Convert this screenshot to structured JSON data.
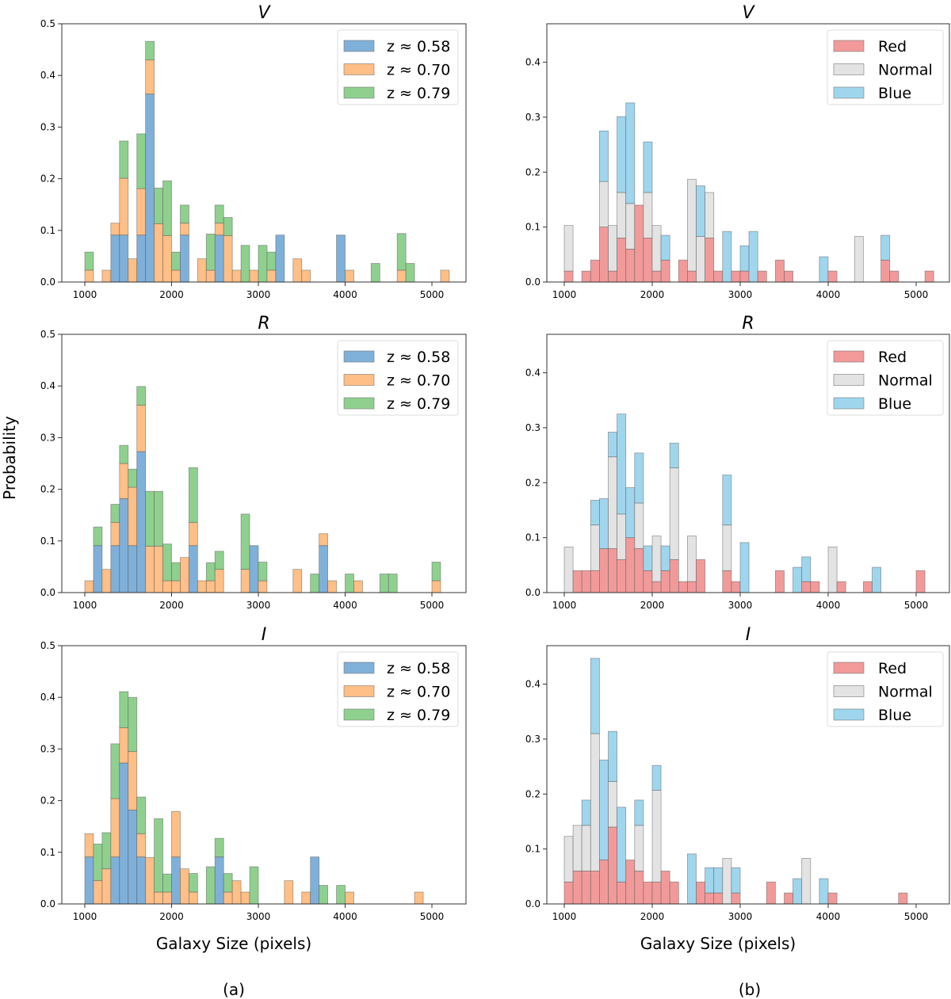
{
  "figure": {
    "ylabel": "Probability",
    "xlabel": "Galaxy Size (pixels)",
    "subcaptions": [
      "(a)",
      "(b)"
    ]
  },
  "chart_data": [
    {
      "type": "bar",
      "stacked": true,
      "panel": "a",
      "title": "V",
      "xlabel": "",
      "ylabel": "Probability",
      "xlim": [
        800,
        5400
      ],
      "ylim": [
        0,
        0.5
      ],
      "xticks": [
        "1000",
        "2000",
        "3000",
        "4000",
        "5000"
      ],
      "yticks": [
        "0.0",
        "0.1",
        "0.2",
        "0.3",
        "0.4",
        "0.5"
      ],
      "legend_position": "top-right",
      "bin_width": 100,
      "series": [
        {
          "name": "z ≈ 0.58",
          "color": "#7fb0d9"
        },
        {
          "name": "z ≈ 0.70",
          "color": "#ffbf86"
        },
        {
          "name": "z ≈ 0.79",
          "color": "#8fd08f"
        }
      ],
      "bins": [
        [
          1000,
          0,
          0.023,
          0.035
        ],
        [
          1200,
          0,
          0.023,
          0
        ],
        [
          1300,
          0.091,
          0.023,
          0
        ],
        [
          1400,
          0.091,
          0.11,
          0.072
        ],
        [
          1500,
          0,
          0.045,
          0
        ],
        [
          1600,
          0.091,
          0.09,
          0.106
        ],
        [
          1700,
          0.364,
          0.066,
          0.036
        ],
        [
          1800,
          0,
          0.113,
          0.069
        ],
        [
          1900,
          0,
          0.09,
          0.106
        ],
        [
          2000,
          0,
          0.023,
          0.035
        ],
        [
          2100,
          0.091,
          0.023,
          0.035
        ],
        [
          2300,
          0,
          0.045,
          0
        ],
        [
          2400,
          0,
          0.023,
          0.07
        ],
        [
          2500,
          0.091,
          0.023,
          0.035
        ],
        [
          2600,
          0,
          0.09,
          0.035
        ],
        [
          2700,
          0,
          0.023,
          0
        ],
        [
          2800,
          0,
          0,
          0.071
        ],
        [
          2900,
          0,
          0.023,
          0
        ],
        [
          3000,
          0,
          0,
          0.071
        ],
        [
          3100,
          0,
          0.023,
          0.035
        ],
        [
          3200,
          0.091,
          0,
          0
        ],
        [
          3400,
          0,
          0.045,
          0
        ],
        [
          3500,
          0,
          0.023,
          0
        ],
        [
          3900,
          0.091,
          0,
          0
        ],
        [
          4000,
          0,
          0.023,
          0
        ],
        [
          4300,
          0,
          0,
          0.036
        ],
        [
          4600,
          0,
          0.023,
          0.071
        ],
        [
          4700,
          0,
          0,
          0.036
        ],
        [
          5100,
          0,
          0.023,
          0
        ]
      ]
    },
    {
      "type": "bar",
      "stacked": true,
      "panel": "b",
      "title": "V",
      "xlabel": "",
      "ylabel": "",
      "xlim": [
        800,
        5400
      ],
      "ylim": [
        0,
        0.47
      ],
      "xticks": [
        "1000",
        "2000",
        "3000",
        "4000",
        "5000"
      ],
      "yticks": [
        "0.0",
        "0.1",
        "0.2",
        "0.3",
        "0.4"
      ],
      "legend_position": "top-right",
      "bin_width": 100,
      "series": [
        {
          "name": "Red",
          "color": "#f29a9a"
        },
        {
          "name": "Normal",
          "color": "#e3e3e3"
        },
        {
          "name": "Blue",
          "color": "#9fd6ee"
        }
      ],
      "bins": [
        [
          1000,
          0.02,
          0.083,
          0
        ],
        [
          1200,
          0.02,
          0,
          0
        ],
        [
          1300,
          0.04,
          0,
          0
        ],
        [
          1400,
          0.1,
          0.083,
          0.092
        ],
        [
          1500,
          0.02,
          0.083,
          0
        ],
        [
          1600,
          0.08,
          0.083,
          0.138
        ],
        [
          1700,
          0.06,
          0.083,
          0.183
        ],
        [
          1800,
          0.14,
          0,
          0
        ],
        [
          1900,
          0.08,
          0.083,
          0.092
        ],
        [
          2000,
          0.02,
          0.083,
          0
        ],
        [
          2100,
          0.04,
          0,
          0.045
        ],
        [
          2300,
          0.04,
          0,
          0
        ],
        [
          2400,
          0.02,
          0.167,
          0
        ],
        [
          2500,
          0,
          0.083,
          0.092
        ],
        [
          2600,
          0.08,
          0.083,
          0
        ],
        [
          2700,
          0.02,
          0,
          0
        ],
        [
          2800,
          0,
          0,
          0.092
        ],
        [
          2900,
          0.02,
          0,
          0
        ],
        [
          3000,
          0.02,
          0,
          0.046
        ],
        [
          3100,
          0,
          0,
          0.092
        ],
        [
          3200,
          0.02,
          0,
          0
        ],
        [
          3400,
          0.04,
          0,
          0
        ],
        [
          3500,
          0.02,
          0,
          0
        ],
        [
          3900,
          0,
          0,
          0.046
        ],
        [
          4000,
          0.02,
          0,
          0
        ],
        [
          4300,
          0,
          0.083,
          0
        ],
        [
          4600,
          0.04,
          0,
          0.045
        ],
        [
          4700,
          0.02,
          0,
          0
        ],
        [
          5100,
          0.02,
          0,
          0
        ]
      ]
    },
    {
      "type": "bar",
      "stacked": true,
      "panel": "a",
      "title": "R",
      "xlabel": "",
      "ylabel": "Probability",
      "xlim": [
        800,
        5400
      ],
      "ylim": [
        0,
        0.5
      ],
      "xticks": [
        "1000",
        "2000",
        "3000",
        "4000",
        "5000"
      ],
      "yticks": [
        "0.0",
        "0.1",
        "0.2",
        "0.3",
        "0.4",
        "0.5"
      ],
      "legend_position": "top-right",
      "bin_width": 100,
      "series": [
        {
          "name": "z ≈ 0.58",
          "color": "#7fb0d9"
        },
        {
          "name": "z ≈ 0.70",
          "color": "#ffbf86"
        },
        {
          "name": "z ≈ 0.79",
          "color": "#8fd08f"
        }
      ],
      "bins": [
        [
          1000,
          0,
          0.023,
          0
        ],
        [
          1100,
          0.091,
          0,
          0.036
        ],
        [
          1200,
          0,
          0.045,
          0
        ],
        [
          1300,
          0.091,
          0.045,
          0.035
        ],
        [
          1400,
          0.182,
          0.068,
          0.035
        ],
        [
          1500,
          0.091,
          0.113,
          0.035
        ],
        [
          1600,
          0.273,
          0.09,
          0.036
        ],
        [
          1700,
          0,
          0.09,
          0.106
        ],
        [
          1800,
          0,
          0.09,
          0.106
        ],
        [
          1900,
          0,
          0.023,
          0.071
        ],
        [
          2000,
          0,
          0.023,
          0.035
        ],
        [
          2100,
          0,
          0.068,
          0
        ],
        [
          2200,
          0.091,
          0.045,
          0.106
        ],
        [
          2300,
          0,
          0.023,
          0
        ],
        [
          2400,
          0,
          0.023,
          0.035
        ],
        [
          2500,
          0,
          0.045,
          0.035
        ],
        [
          2800,
          0,
          0.045,
          0.107
        ],
        [
          2900,
          0.091,
          0,
          0
        ],
        [
          3000,
          0,
          0.023,
          0.036
        ],
        [
          3400,
          0,
          0.045,
          0
        ],
        [
          3600,
          0,
          0,
          0.036
        ],
        [
          3700,
          0.091,
          0.023,
          0
        ],
        [
          3800,
          0,
          0.023,
          0
        ],
        [
          4000,
          0,
          0,
          0.036
        ],
        [
          4100,
          0,
          0.023,
          0
        ],
        [
          4400,
          0,
          0,
          0.036
        ],
        [
          4500,
          0,
          0,
          0.036
        ],
        [
          5000,
          0,
          0.023,
          0.036
        ]
      ]
    },
    {
      "type": "bar",
      "stacked": true,
      "panel": "b",
      "title": "R",
      "xlabel": "",
      "ylabel": "",
      "xlim": [
        800,
        5400
      ],
      "ylim": [
        0,
        0.47
      ],
      "xticks": [
        "1000",
        "2000",
        "3000",
        "4000",
        "5000"
      ],
      "yticks": [
        "0.0",
        "0.1",
        "0.2",
        "0.3",
        "0.4"
      ],
      "legend_position": "top-right",
      "bin_width": 100,
      "series": [
        {
          "name": "Red",
          "color": "#f29a9a"
        },
        {
          "name": "Normal",
          "color": "#e3e3e3"
        },
        {
          "name": "Blue",
          "color": "#9fd6ee"
        }
      ],
      "bins": [
        [
          1000,
          0,
          0.083,
          0
        ],
        [
          1100,
          0.04,
          0,
          0
        ],
        [
          1200,
          0.04,
          0,
          0
        ],
        [
          1300,
          0.04,
          0.083,
          0.045
        ],
        [
          1400,
          0.08,
          0,
          0.091
        ],
        [
          1500,
          0.08,
          0.167,
          0.045
        ],
        [
          1600,
          0.06,
          0.083,
          0.182
        ],
        [
          1700,
          0.1,
          0,
          0.091
        ],
        [
          1800,
          0.08,
          0.083,
          0.091
        ],
        [
          1900,
          0.04,
          0,
          0.045
        ],
        [
          2000,
          0.02,
          0.083,
          0
        ],
        [
          2100,
          0.04,
          0,
          0.045
        ],
        [
          2200,
          0.06,
          0.167,
          0.045
        ],
        [
          2300,
          0.02,
          0,
          0
        ],
        [
          2400,
          0.02,
          0.083,
          0
        ],
        [
          2500,
          0.06,
          0,
          0
        ],
        [
          2800,
          0.04,
          0.083,
          0.091
        ],
        [
          2900,
          0.02,
          0,
          0
        ],
        [
          3000,
          0,
          0,
          0.091
        ],
        [
          3400,
          0.04,
          0,
          0
        ],
        [
          3600,
          0,
          0,
          0.046
        ],
        [
          3700,
          0.02,
          0,
          0.045
        ],
        [
          3800,
          0.02,
          0,
          0
        ],
        [
          4000,
          0,
          0.083,
          0
        ],
        [
          4100,
          0.02,
          0,
          0
        ],
        [
          4400,
          0.02,
          0,
          0
        ],
        [
          4500,
          0,
          0,
          0.046
        ],
        [
          5000,
          0.04,
          0,
          0
        ]
      ]
    },
    {
      "type": "bar",
      "stacked": true,
      "panel": "a",
      "title": "I",
      "xlabel": "Galaxy Size (pixels)",
      "ylabel": "Probability",
      "xlim": [
        800,
        5400
      ],
      "ylim": [
        0,
        0.5
      ],
      "xticks": [
        "1000",
        "2000",
        "3000",
        "4000",
        "5000"
      ],
      "yticks": [
        "0.0",
        "0.1",
        "0.2",
        "0.3",
        "0.4",
        "0.5"
      ],
      "legend_position": "top-right",
      "bin_width": 100,
      "series": [
        {
          "name": "z ≈ 0.58",
          "color": "#7fb0d9"
        },
        {
          "name": "z ≈ 0.70",
          "color": "#ffbf86"
        },
        {
          "name": "z ≈ 0.79",
          "color": "#8fd08f"
        }
      ],
      "bins": [
        [
          1000,
          0.091,
          0.045,
          0
        ],
        [
          1100,
          0,
          0.045,
          0.071
        ],
        [
          1200,
          0,
          0.068,
          0.07
        ],
        [
          1300,
          0.091,
          0.113,
          0.106
        ],
        [
          1400,
          0.273,
          0.068,
          0.07
        ],
        [
          1500,
          0.182,
          0.113,
          0.105
        ],
        [
          1600,
          0.091,
          0.045,
          0.071
        ],
        [
          1700,
          0,
          0.09,
          0
        ],
        [
          1800,
          0,
          0.023,
          0.142
        ],
        [
          1900,
          0,
          0.023,
          0.035
        ],
        [
          2000,
          0.091,
          0.088,
          0
        ],
        [
          2100,
          0,
          0.068,
          0
        ],
        [
          2200,
          0,
          0.023,
          0.036
        ],
        [
          2400,
          0,
          0,
          0.072
        ],
        [
          2500,
          0.091,
          0,
          0.036
        ],
        [
          2600,
          0,
          0.023,
          0.036
        ],
        [
          2700,
          0,
          0.045,
          0
        ],
        [
          2800,
          0,
          0.023,
          0
        ],
        [
          2900,
          0,
          0,
          0.072
        ],
        [
          3300,
          0,
          0.045,
          0
        ],
        [
          3500,
          0,
          0.023,
          0
        ],
        [
          3600,
          0.091,
          0,
          0
        ],
        [
          3700,
          0,
          0,
          0.036
        ],
        [
          3900,
          0,
          0,
          0.036
        ],
        [
          4000,
          0,
          0.023,
          0
        ],
        [
          4800,
          0,
          0.023,
          0
        ]
      ]
    },
    {
      "type": "bar",
      "stacked": true,
      "panel": "b",
      "title": "I",
      "xlabel": "Galaxy Size (pixels)",
      "ylabel": "",
      "xlim": [
        800,
        5400
      ],
      "ylim": [
        0,
        0.47
      ],
      "xticks": [
        "1000",
        "2000",
        "3000",
        "4000",
        "5000"
      ],
      "yticks": [
        "0.0",
        "0.1",
        "0.2",
        "0.3",
        "0.4"
      ],
      "legend_position": "top-right",
      "bin_width": 100,
      "series": [
        {
          "name": "Red",
          "color": "#f29a9a"
        },
        {
          "name": "Normal",
          "color": "#e3e3e3"
        },
        {
          "name": "Blue",
          "color": "#9fd6ee"
        }
      ],
      "bins": [
        [
          1000,
          0.04,
          0.083,
          0
        ],
        [
          1100,
          0.06,
          0.083,
          0
        ],
        [
          1200,
          0.06,
          0.083,
          0.046
        ],
        [
          1300,
          0.06,
          0.25,
          0.137
        ],
        [
          1400,
          0.08,
          0,
          0.182
        ],
        [
          1500,
          0.14,
          0.083,
          0.091
        ],
        [
          1600,
          0.04,
          0,
          0.136
        ],
        [
          1700,
          0.08,
          0,
          0
        ],
        [
          1800,
          0.06,
          0.083,
          0.046
        ],
        [
          1900,
          0.04,
          0,
          0
        ],
        [
          2000,
          0.04,
          0.167,
          0.045
        ],
        [
          2100,
          0.06,
          0,
          0
        ],
        [
          2200,
          0.04,
          0,
          0
        ],
        [
          2400,
          0,
          0,
          0.091
        ],
        [
          2500,
          0.04,
          0,
          0
        ],
        [
          2600,
          0.02,
          0,
          0.046
        ],
        [
          2700,
          0.02,
          0,
          0.046
        ],
        [
          2800,
          0,
          0.083,
          0
        ],
        [
          2900,
          0.02,
          0,
          0.046
        ],
        [
          3300,
          0.04,
          0,
          0
        ],
        [
          3500,
          0.02,
          0,
          0
        ],
        [
          3600,
          0,
          0,
          0.046
        ],
        [
          3700,
          0,
          0.083,
          0
        ],
        [
          3900,
          0,
          0,
          0.046
        ],
        [
          4000,
          0.02,
          0,
          0
        ],
        [
          4800,
          0.02,
          0,
          0
        ]
      ]
    }
  ]
}
